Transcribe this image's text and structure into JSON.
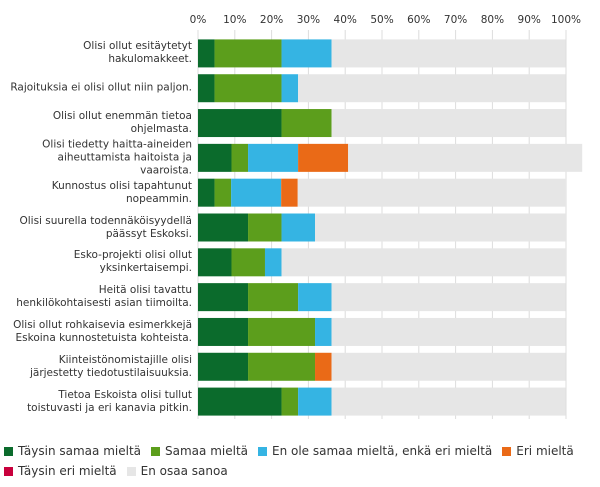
{
  "chart_data": {
    "type": "stacked-bar-horizontal",
    "categories": [
      "Olisi ollut esitäytetyt hakulomakkeet.",
      "Rajoituksia ei olisi ollut niin paljon.",
      "Olisi ollut enemmän tietoa ohjelmasta.",
      "Olisi tiedetty haitta-aineiden aiheuttamista haitoista ja vaaroista.",
      "Kunnostus olisi tapahtunut nopeammin.",
      "Olisi suurella todennäköisyydellä päässyt Eskoksi.",
      "Esko-projekti olisi ollut yksinkertaisempi.",
      "Heitä olisi tavattu henkilökohtaisesti asian tiimoilta.",
      "Olisi ollut rohkaisevia esimerkkejä Eskoina kunnostetuista kohteista.",
      "Kiinteistönomistajille olisi järjestetty tiedotustilaisuuksia.",
      "Tietoa Eskoista olisi tullut toistuvasti ja eri kanavia pitkin."
    ],
    "series": [
      {
        "name": "Täysin samaa mieltä",
        "color": "#0b6b2c",
        "values": [
          4.5,
          4.5,
          22.7,
          9.1,
          4.5,
          13.6,
          9.1,
          13.6,
          13.6,
          13.6,
          22.7
        ]
      },
      {
        "name": "Samaa mieltä",
        "color": "#5c9e1c",
        "values": [
          18.2,
          18.2,
          13.6,
          4.5,
          4.5,
          9.1,
          9.1,
          13.6,
          18.2,
          18.2,
          4.5
        ]
      },
      {
        "name": "En ole samaa mieltä, enkä eri mieltä",
        "color": "#35b4e3",
        "values": [
          13.6,
          4.5,
          0,
          13.6,
          13.6,
          9.1,
          4.5,
          9.1,
          4.5,
          0,
          9.1
        ]
      },
      {
        "name": "Eri mieltä",
        "color": "#ea6a17",
        "values": [
          0,
          0,
          0,
          13.6,
          4.5,
          0,
          0,
          0,
          0,
          4.5,
          0
        ]
      },
      {
        "name": "Täysin eri mieltä",
        "color": "#c8003c",
        "values": [
          0,
          0,
          0,
          0,
          0,
          0,
          0,
          0,
          0,
          0,
          0
        ]
      },
      {
        "name": "En osaa sanoa",
        "color": "#e6e6e6",
        "values": [
          63.6,
          72.7,
          63.6,
          63.6,
          72.7,
          68.2,
          77.3,
          63.6,
          63.6,
          63.6,
          63.6
        ]
      }
    ],
    "xlim": [
      0,
      100
    ],
    "xticks": [
      {
        "value": 0,
        "label": "0%"
      },
      {
        "value": 10,
        "label": "10%"
      },
      {
        "value": 20,
        "label": "20%"
      },
      {
        "value": 30,
        "label": "30%"
      },
      {
        "value": 40,
        "label": "40%"
      },
      {
        "value": 50,
        "label": "50%"
      },
      {
        "value": 60,
        "label": "60%"
      },
      {
        "value": 70,
        "label": "70%"
      },
      {
        "value": 80,
        "label": "80%"
      },
      {
        "value": 90,
        "label": "90%"
      },
      {
        "value": 100,
        "label": "100%"
      }
    ],
    "grid": true
  }
}
